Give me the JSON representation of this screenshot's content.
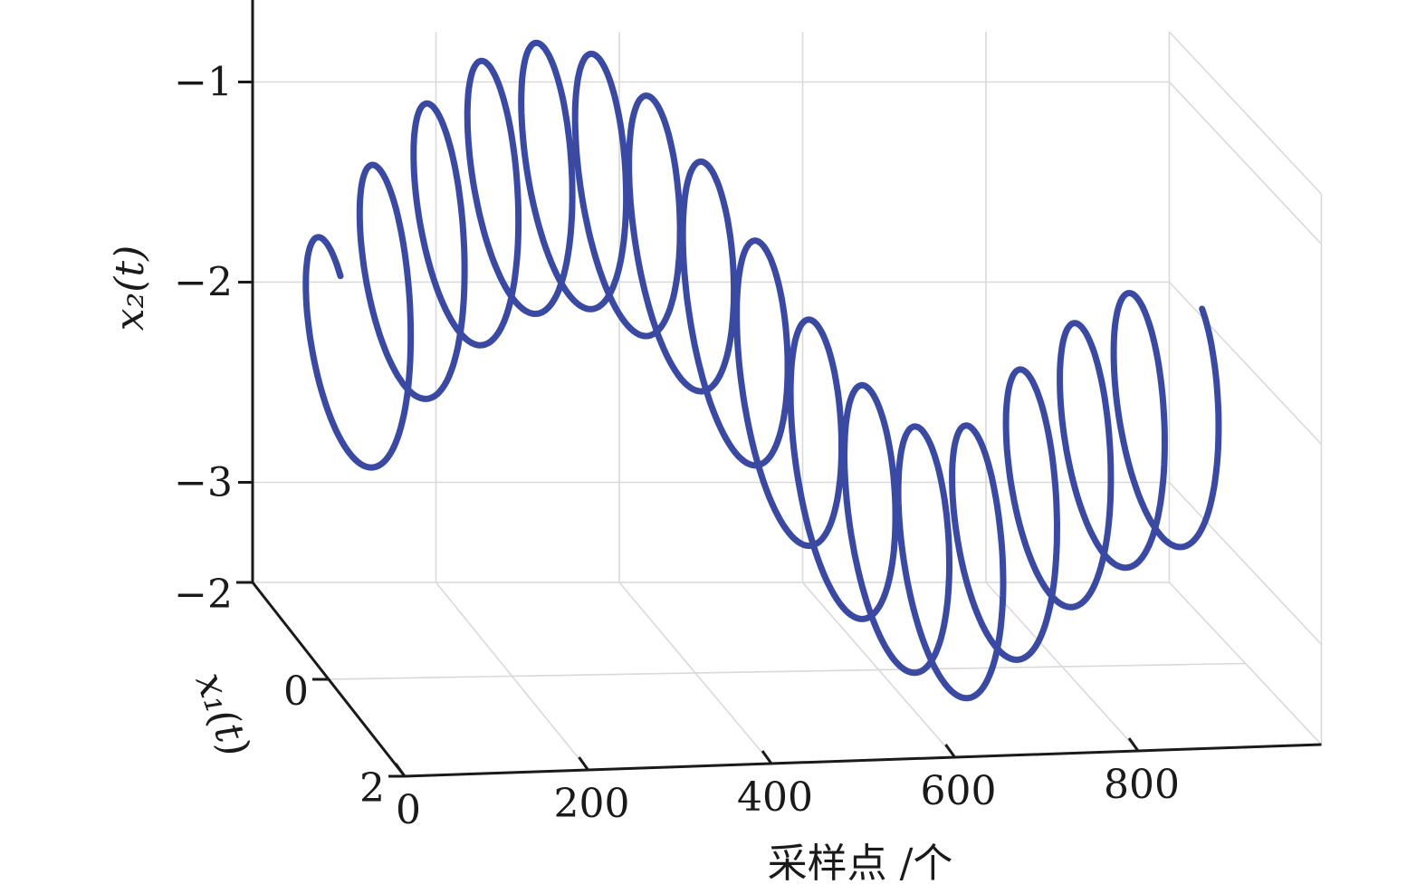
{
  "chart_data": {
    "type": "line",
    "projection": "3d",
    "xlabel": "采样点 /个",
    "ylabel": "x₁(t)",
    "zlabel": "x₂(t)",
    "x_ticks": [
      "0",
      "200",
      "400",
      "600",
      "800"
    ],
    "y_ticks": [
      "−2",
      "0",
      "2"
    ],
    "z_ticks": [
      "−1",
      "−2",
      "−3"
    ],
    "xlim": [
      0,
      1000
    ],
    "ylim": [
      -2,
      2
    ],
    "zlim": [
      -3.5,
      -0.75
    ],
    "grid": true,
    "series": [
      {
        "color": "#3a4aa3",
        "x_start": 0,
        "x_end": 940,
        "helix_turns": 16,
        "helix_amplitude": 1.0,
        "center_z_at_0": -2.0,
        "center_z_peak": -1.0,
        "center_z_peak_at": 250,
        "center_z_min": -3.0,
        "center_z_min_at": 700
      }
    ]
  }
}
